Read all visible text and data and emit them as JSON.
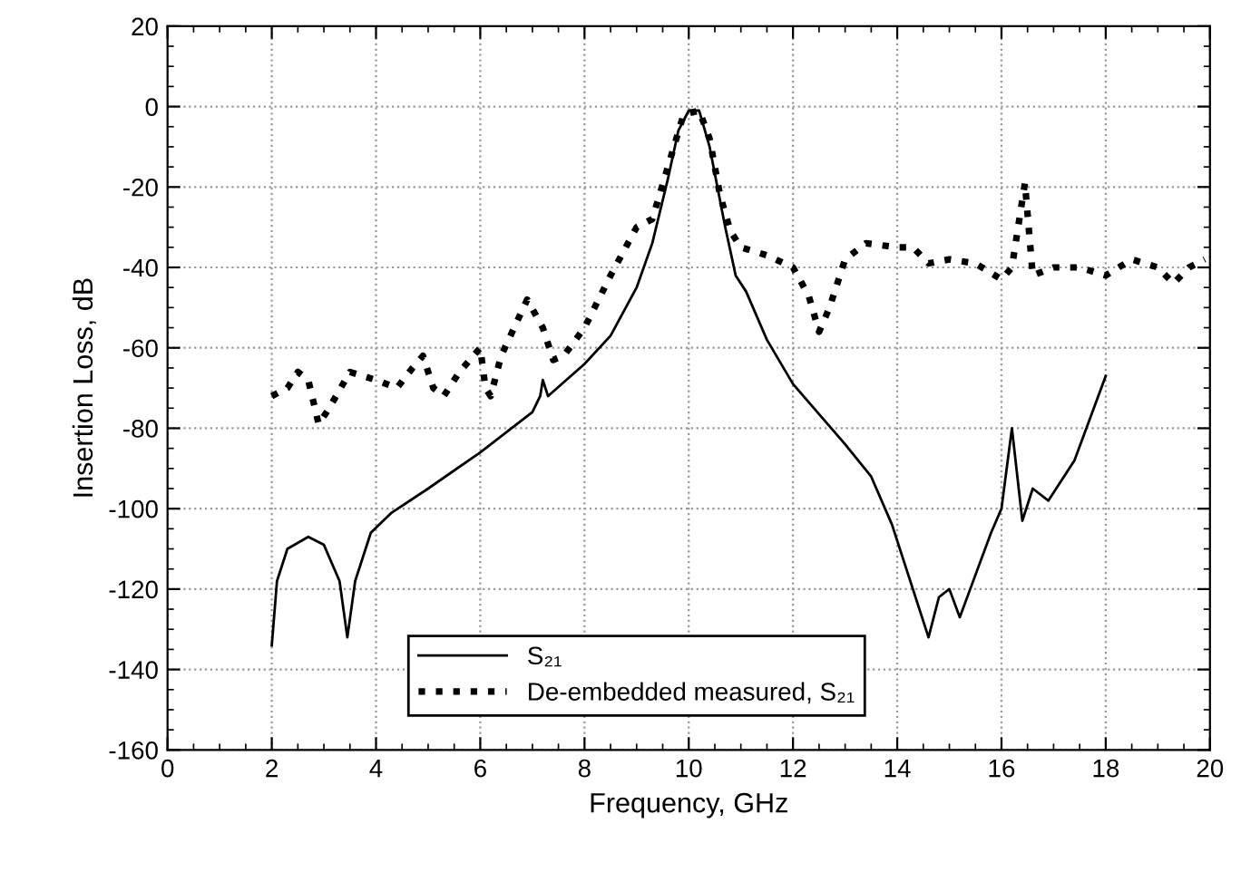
{
  "chart_data": {
    "type": "line",
    "xlabel": "Frequency, GHz",
    "ylabel": "Insertion Loss, dB",
    "xlim": [
      0,
      20
    ],
    "ylim": [
      -160,
      20
    ],
    "xticks": [
      0,
      2,
      4,
      6,
      8,
      10,
      12,
      14,
      16,
      18,
      20
    ],
    "yticks": [
      -160,
      -140,
      -120,
      -100,
      -80,
      -60,
      -40,
      -20,
      0,
      20
    ],
    "grid": true,
    "legend": "bottom",
    "series": [
      {
        "name": "S₂₁",
        "color": "#000000",
        "line_style": "solid",
        "x": [
          2.0,
          2.1,
          2.3,
          2.7,
          3.0,
          3.3,
          3.45,
          3.6,
          3.9,
          4.3,
          5,
          6,
          7,
          7.15,
          7.2,
          7.3,
          8,
          8.5,
          9,
          9.3,
          9.6,
          9.8,
          10,
          10.2,
          10.4,
          10.7,
          10.9,
          11.1,
          11.5,
          12,
          13,
          13.5,
          13.9,
          14.2,
          14.6,
          14.8,
          15.0,
          15.2,
          15.4,
          15.8,
          16.0,
          16.2,
          16.4,
          16.6,
          16.9,
          17.4,
          18
        ],
        "values": [
          -134,
          -118,
          -110,
          -107,
          -109,
          -118,
          -132,
          -118,
          -106,
          -101,
          -95,
          -86,
          -76,
          -72,
          -68,
          -72,
          -64,
          -57,
          -45,
          -34,
          -18,
          -6,
          -1,
          -1,
          -10,
          -30,
          -42,
          -46,
          -58,
          -69,
          -84,
          -92,
          -104,
          -116,
          -132,
          -122,
          -120,
          -127,
          -120,
          -106,
          -100,
          -80,
          -103,
          -95,
          -98,
          -88,
          -67
        ]
      },
      {
        "name": "De-embedded measured, S₂₁",
        "color": "#000000",
        "line_style": "dotted",
        "x": [
          2,
          2.3,
          2.5,
          2.7,
          2.9,
          3.1,
          3.5,
          4,
          4.4,
          4.7,
          4.9,
          5.1,
          5.3,
          5.6,
          6.0,
          6.1,
          6.2,
          6.4,
          6.9,
          7.2,
          7.4,
          7.6,
          8.0,
          8.5,
          9,
          9.3,
          9.6,
          9.9,
          10.2,
          10.4,
          10.6,
          10.8,
          11.0,
          11.5,
          12.0,
          12.3,
          12.5,
          12.7,
          13,
          13.4,
          14,
          14.3,
          14.6,
          15,
          15.5,
          16.0,
          16.2,
          16.45,
          16.6,
          17,
          17.5,
          18,
          18.5,
          19,
          19.3,
          19.6,
          19.9
        ],
        "values": [
          -72,
          -70,
          -66,
          -68,
          -79,
          -75,
          -66,
          -68,
          -70,
          -65,
          -62,
          -70,
          -72,
          -66,
          -60,
          -70,
          -72,
          -62,
          -48,
          -55,
          -63,
          -62,
          -55,
          -42,
          -30,
          -28,
          -15,
          -2,
          -1,
          -8,
          -22,
          -31,
          -35,
          -37,
          -40,
          -47,
          -56,
          -50,
          -38,
          -34,
          -35,
          -35,
          -39,
          -38,
          -39,
          -43,
          -40,
          -19,
          -42,
          -40,
          -40,
          -42,
          -38,
          -40,
          -44,
          -40,
          -38
        ]
      }
    ]
  }
}
